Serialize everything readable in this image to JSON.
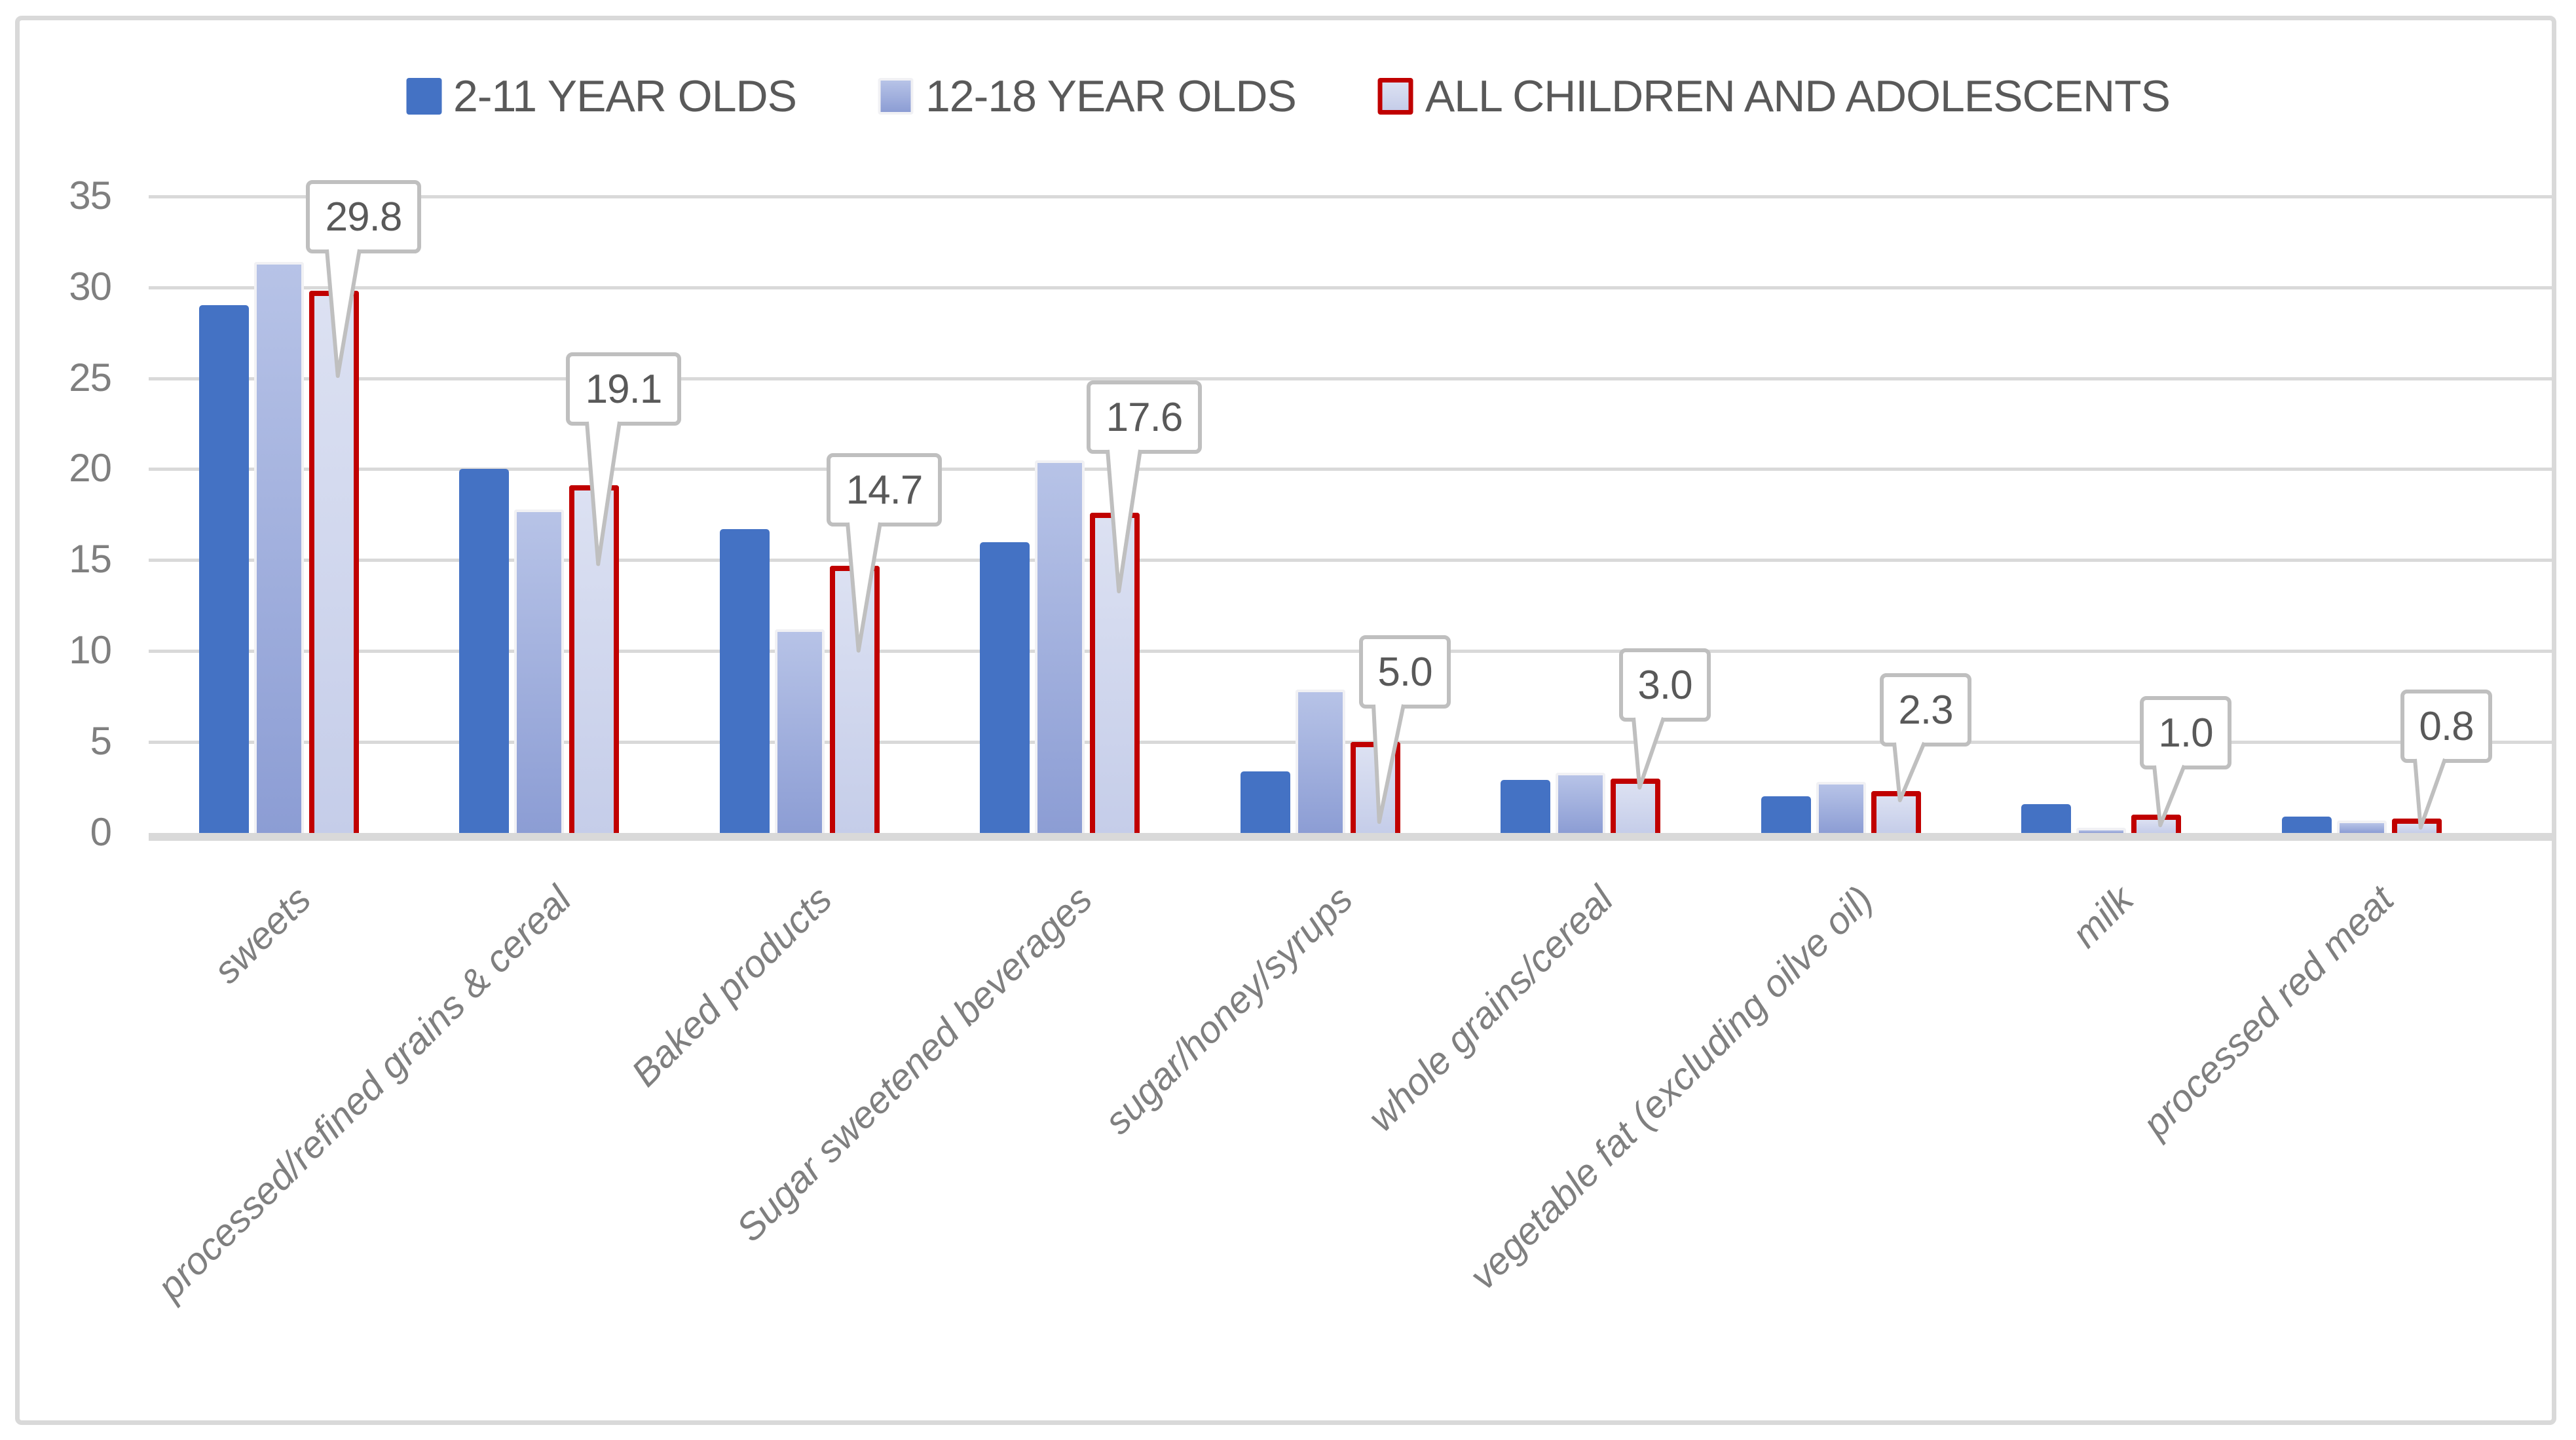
{
  "chart_data": {
    "type": "bar",
    "title": "",
    "categories": [
      "sweets",
      "processed/refined grains & cereal",
      "Baked products",
      "Sugar sweetened beverages",
      "sugar/honey/syrups",
      "whole grains/cereal",
      "vegetable fat (excluding oilve oil)",
      "milk",
      "processed red meat"
    ],
    "series": [
      {
        "name": "2-11 YEAR OLDS",
        "values": [
          29.0,
          20.0,
          16.7,
          16.0,
          3.4,
          2.9,
          2.0,
          1.6,
          0.9
        ]
      },
      {
        "name": "12-18 YEAR OLDS",
        "values": [
          31.4,
          17.8,
          11.2,
          20.5,
          7.9,
          3.3,
          2.8,
          0.3,
          0.7
        ]
      },
      {
        "name": "ALL CHILDREN AND ADOLESCENTS",
        "values": [
          29.8,
          19.1,
          14.7,
          17.6,
          5.0,
          3.0,
          2.3,
          1.0,
          0.8
        ]
      }
    ],
    "data_labels": {
      "series": "ALL CHILDREN AND ADOLESCENTS",
      "values": [
        "29.8",
        "19.1",
        "14.7",
        "17.6",
        "5.0",
        "3.0",
        "2.3",
        "1.0",
        "0.8"
      ]
    },
    "y_axis": {
      "min": 0,
      "max": 35,
      "ticks": [
        0,
        5,
        10,
        15,
        20,
        25,
        30,
        35
      ]
    },
    "x_axis": {
      "label_style": "italic, rotated 45 degrees"
    },
    "grid": true,
    "legend_position": "top"
  },
  "legend": {
    "items": [
      {
        "label": "2-11 YEAR OLDS",
        "swatch": "solid-blue"
      },
      {
        "label": "12-18 YEAR OLDS",
        "swatch": "lavender-gradient"
      },
      {
        "label": "ALL CHILDREN AND ADOLESCENTS",
        "swatch": "red-outline"
      }
    ]
  },
  "colors": {
    "series1_blue": "#4472C4",
    "series2_gradient_top": "#B7C3E7",
    "series2_gradient_bottom": "#8C9DD4",
    "series2_edge": "#F1F1F4",
    "series3_outline_red": "#C00000",
    "series3_fill_top": "#DCE1F2",
    "series3_fill_bottom": "#C5CDE9",
    "gridline": "#D9D9D9",
    "frame_border": "#D9D9D9",
    "axis_text": "#7F7F7F",
    "legend_text": "#595959",
    "callout_text": "#595959",
    "callout_border": "#BFBFBF"
  }
}
